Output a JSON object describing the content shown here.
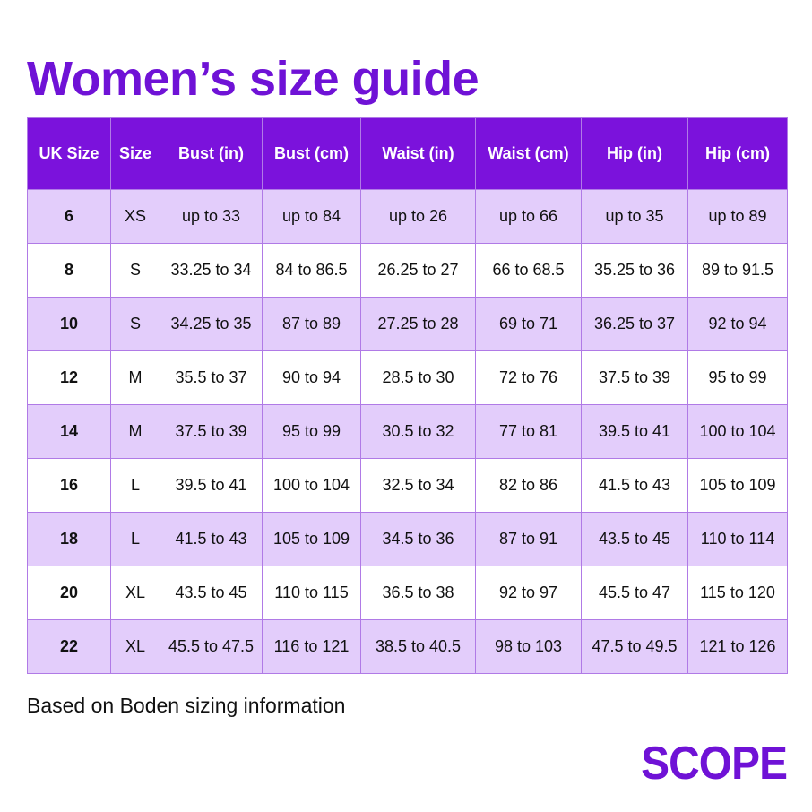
{
  "title": "Women’s size guide",
  "table": {
    "headers": [
      "UK Size",
      "Size",
      "Bust (in)",
      "Bust (cm)",
      "Waist (in)",
      "Waist (cm)",
      "Hip (in)",
      "Hip (cm)"
    ],
    "rows": [
      [
        "6",
        "XS",
        "up to 33",
        "up to 84",
        "up to 26",
        "up to 66",
        "up to 35",
        "up to 89"
      ],
      [
        "8",
        "S",
        "33.25 to 34",
        "84 to 86.5",
        "26.25 to 27",
        "66 to 68.5",
        "35.25 to 36",
        "89 to 91.5"
      ],
      [
        "10",
        "S",
        "34.25 to 35",
        "87 to 89",
        "27.25 to 28",
        "69 to 71",
        "36.25 to 37",
        "92 to 94"
      ],
      [
        "12",
        "M",
        "35.5 to 37",
        "90 to 94",
        "28.5 to 30",
        "72 to 76",
        "37.5 to 39",
        "95 to 99"
      ],
      [
        "14",
        "M",
        "37.5 to 39",
        "95 to 99",
        "30.5 to 32",
        "77 to 81",
        "39.5 to 41",
        "100 to 104"
      ],
      [
        "16",
        "L",
        "39.5 to 41",
        "100 to 104",
        "32.5 to 34",
        "82 to 86",
        "41.5 to 43",
        "105 to 109"
      ],
      [
        "18",
        "L",
        "41.5 to 43",
        "105 to 109",
        "34.5 to 36",
        "87 to 91",
        "43.5 to 45",
        "110 to 114"
      ],
      [
        "20",
        "XL",
        "43.5 to 45",
        "110 to 115",
        "36.5 to 38",
        "92 to 97",
        "45.5 to 47",
        "115 to 120"
      ],
      [
        "22",
        "XL",
        "45.5 to 47.5",
        "116 to 121",
        "38.5 to 40.5",
        "98 to 103",
        "47.5 to 49.5",
        "121 to 126"
      ]
    ]
  },
  "footnote": "Based on Boden sizing information",
  "logo_text": "SCOPE",
  "colors": {
    "brand_purple": "#6f12d6",
    "header_bg": "#7b12dc",
    "row_tint": "#e3cdfb",
    "border": "#b07ae6"
  }
}
